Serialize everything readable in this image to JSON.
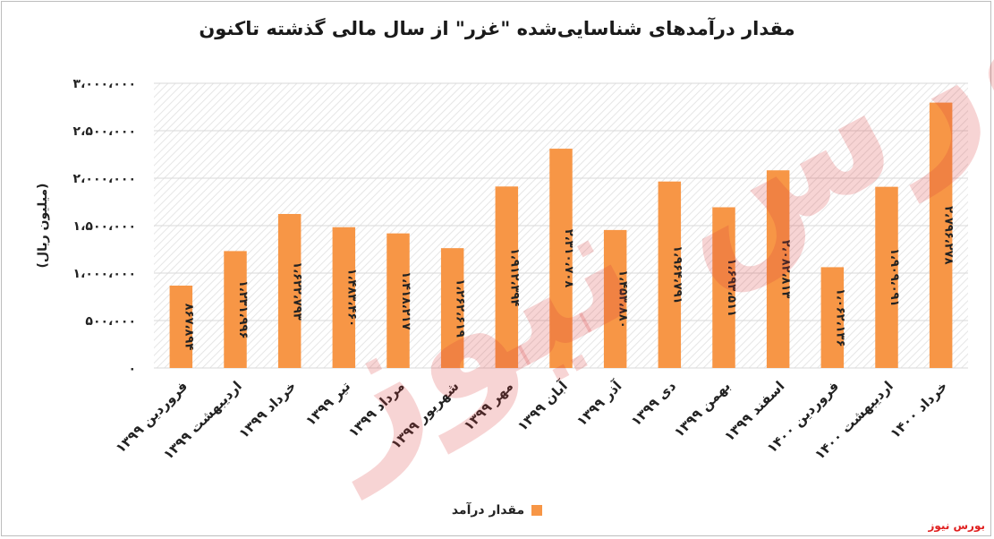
{
  "chart_data": {
    "type": "bar",
    "title": "مقدار درآمدهای شناسایی‌شده \"غزر\" از سال مالی گذشته تاکنون",
    "ylabel": "(میلیون ریال)",
    "xlabel": "",
    "ylim": [
      0,
      3000000
    ],
    "yticks": [
      "۰",
      "۵۰۰،۰۰۰",
      "۱،۰۰۰،۰۰۰",
      "۱،۵۰۰،۰۰۰",
      "۲،۰۰۰،۰۰۰",
      "۲،۵۰۰،۰۰۰",
      "۳،۰۰۰،۰۰۰"
    ],
    "grid": true,
    "legend_position": "bottom",
    "categories": [
      "فروردین ۱۳۹۹",
      "اردیبهشت ۱۳۹۹",
      "خرداد ۱۳۹۹",
      "تیر ۱۳۹۹",
      "مرداد ۱۳۹۹",
      "شهریور ۱۳۹۹",
      "مهر ۱۳۹۹",
      "آبان ۱۳۹۹",
      "آذر ۱۳۹۹",
      "دی ۱۳۹۹",
      "بهمن ۱۳۹۹",
      "اسفند ۱۳۹۹",
      "فروردین ۱۴۰۰",
      "اردیبهشت ۱۴۰۰",
      "خرداد ۱۴۰۰"
    ],
    "series": [
      {
        "name": "مقدار درآمد",
        "color": "#f79646",
        "values": [
          867894,
          1231996,
          1622793,
          1483460,
          1418217,
          1262619,
          1912394,
          2310708,
          1453880,
          1964791,
          1693511,
          2082813,
          1062136,
          1909091,
          2796278
        ],
        "data_labels": [
          "۸۶۷،۸۹۴",
          "۱،۲۳۱،۹۹۶",
          "۱،۶۲۲،۷۹۳",
          "۱،۴۸۳،۴۶۰",
          "۱،۴۱۸،۲۱۷",
          "۱،۲۶۲،۶۱۹",
          "۱،۹۱۲،۳۹۴",
          "۲،۳۱۰،۷۰۸",
          "۱،۴۵۳،۸۸۰",
          "۱،۹۶۴،۷۹۱",
          "۱،۶۹۳،۵۱۱",
          "۲،۰۸۲،۸۱۳",
          "۱،۰۶۲،۱۳۶",
          "۱،۹۰۹،۰۹۱",
          "۲،۷۹۶،۲۷۸"
        ]
      }
    ]
  },
  "watermark": "بورس نیوز",
  "source": "بورس نیوز"
}
